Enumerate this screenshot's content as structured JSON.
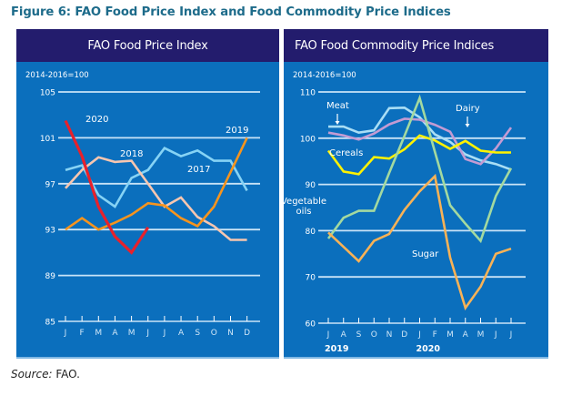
{
  "figure": {
    "title": "Figure 6: FAO Food Price Index and Food Commodity Price Indices",
    "source_label": "Source:",
    "source_value": "FAO."
  },
  "colors": {
    "header_bg": "#231c6d",
    "panel_bg": "#0b6fbd",
    "gridline": "#c9e3f7",
    "title_text": "#1d6b8a"
  },
  "chart_data": [
    {
      "type": "line",
      "title": "FAO Food Price Index",
      "subtitle": "2014-2016=100",
      "xlabel": "",
      "ylabel": "",
      "ylim": [
        85,
        105
      ],
      "yticks": [
        85,
        89,
        93,
        97,
        101,
        105
      ],
      "grid": true,
      "x": [
        "J",
        "F",
        "M",
        "A",
        "M",
        "J",
        "J",
        "A",
        "S",
        "O",
        "N",
        "D"
      ],
      "series": [
        {
          "name": "2017",
          "color": "#86d3f5",
          "label": "2017",
          "values": [
            98.2,
            98.6,
            96.0,
            95.0,
            97.5,
            98.2,
            100.1,
            99.4,
            99.9,
            99.0,
            99.0,
            96.4
          ]
        },
        {
          "name": "2018",
          "color": "#f7c6b0",
          "label": "2018",
          "values": [
            96.6,
            98.2,
            99.3,
            98.9,
            99.0,
            97.0,
            95.0,
            95.8,
            94.1,
            93.3,
            92.1,
            92.1
          ]
        },
        {
          "name": "2019",
          "color": "#f7941d",
          "label": "2019",
          "values": [
            93.0,
            94.0,
            93.0,
            93.6,
            94.3,
            95.3,
            95.1,
            94.0,
            93.3,
            95.0,
            98.0,
            101.0
          ]
        },
        {
          "name": "2020",
          "color": "#e8212b",
          "label": "2020",
          "values": [
            102.5,
            99.4,
            95.0,
            92.4,
            91.0,
            93.2
          ]
        }
      ]
    },
    {
      "type": "line",
      "title": "FAO Food Commodity Price Indices",
      "subtitle": "2014-2016=100",
      "xlabel": "",
      "ylabel": "",
      "ylim": [
        60,
        110
      ],
      "yticks": [
        60,
        70,
        80,
        90,
        100,
        110
      ],
      "grid": true,
      "x": [
        "J",
        "A",
        "S",
        "O",
        "N",
        "D",
        "J",
        "F",
        "M",
        "A",
        "M",
        "J",
        "J"
      ],
      "year_labels": [
        {
          "label": "2019",
          "at_index": 0
        },
        {
          "label": "2020",
          "at_index": 6
        }
      ],
      "series": [
        {
          "name": "Meat",
          "color": "#a9def5",
          "label": "Meat",
          "values": [
            102.5,
            102.5,
            101.2,
            101.7,
            106.5,
            106.6,
            104.5,
            100.8,
            99.2,
            96.5,
            95.2,
            94.4,
            93.2
          ]
        },
        {
          "name": "Dairy",
          "color": "#c39bd3",
          "label": "Dairy",
          "values": [
            101.2,
            100.6,
            99.7,
            101.0,
            103.0,
            104.2,
            104.0,
            102.9,
            101.4,
            95.5,
            94.4,
            97.8,
            102.3
          ]
        },
        {
          "name": "Cereals",
          "color": "#fff200",
          "label": "Cereals",
          "values": [
            97.3,
            92.8,
            92.2,
            95.9,
            95.6,
            97.6,
            100.6,
            99.5,
            97.7,
            99.4,
            97.3,
            96.9,
            96.9
          ]
        },
        {
          "name": "Vegetable oils",
          "color": "#a3d9a0",
          "label": "Vegetable oils",
          "values": [
            78.3,
            82.8,
            84.3,
            84.3,
            92.5,
            100.5,
            108.7,
            97.0,
            85.5,
            81.5,
            77.8,
            87.5,
            93.5
          ]
        },
        {
          "name": "Sugar",
          "color": "#f9b256",
          "label": "Sugar",
          "values": [
            79.6,
            76.5,
            73.4,
            77.8,
            79.3,
            84.5,
            88.5,
            91.8,
            74.2,
            63.3,
            67.9,
            75.0,
            76.1
          ]
        }
      ]
    }
  ]
}
